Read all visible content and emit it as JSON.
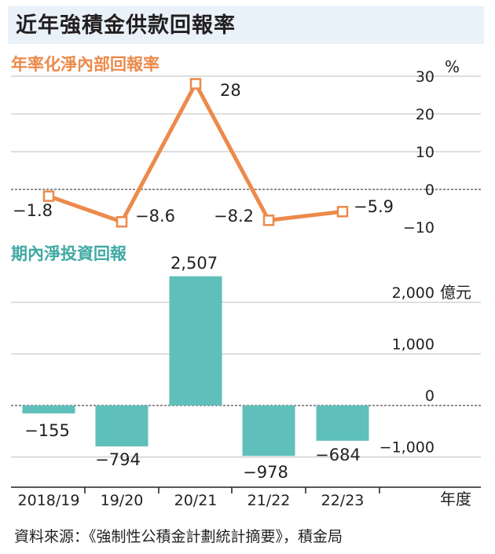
{
  "title": "近年強積金供款回報率",
  "source": "資料來源：《強制性公積金計劃統計摘要》，積金局",
  "chart_data": [
    {
      "type": "line",
      "title": "年率化淨內部回報率",
      "categories": [
        "2018/19",
        "19/20",
        "20/21",
        "21/22",
        "22/23"
      ],
      "values": [
        -1.8,
        -8.6,
        28,
        -8.2,
        -5.9
      ],
      "value_labels": [
        "−1.8",
        "−8.6",
        "28",
        "−8.2",
        "−5.9"
      ],
      "unit": "%",
      "yticks": [
        "30",
        "20",
        "10",
        "0",
        "−10"
      ],
      "ylim": [
        -10,
        30
      ],
      "grid": true,
      "color": "#ec8a4b"
    },
    {
      "type": "bar",
      "title": "期內淨投資回報",
      "categories": [
        "2018/19",
        "19/20",
        "20/21",
        "21/22",
        "22/23"
      ],
      "values": [
        -155,
        -794,
        2507,
        -978,
        -684
      ],
      "value_labels": [
        "−155",
        "−794",
        "2,507",
        "−978",
        "−684"
      ],
      "unit": "億元",
      "yticks": [
        "2,000",
        "1,000",
        "0",
        "−1,000"
      ],
      "yrange": [
        -1000,
        2000
      ],
      "xlabel": "年度",
      "grid": true,
      "color": "#5fbfba"
    }
  ]
}
